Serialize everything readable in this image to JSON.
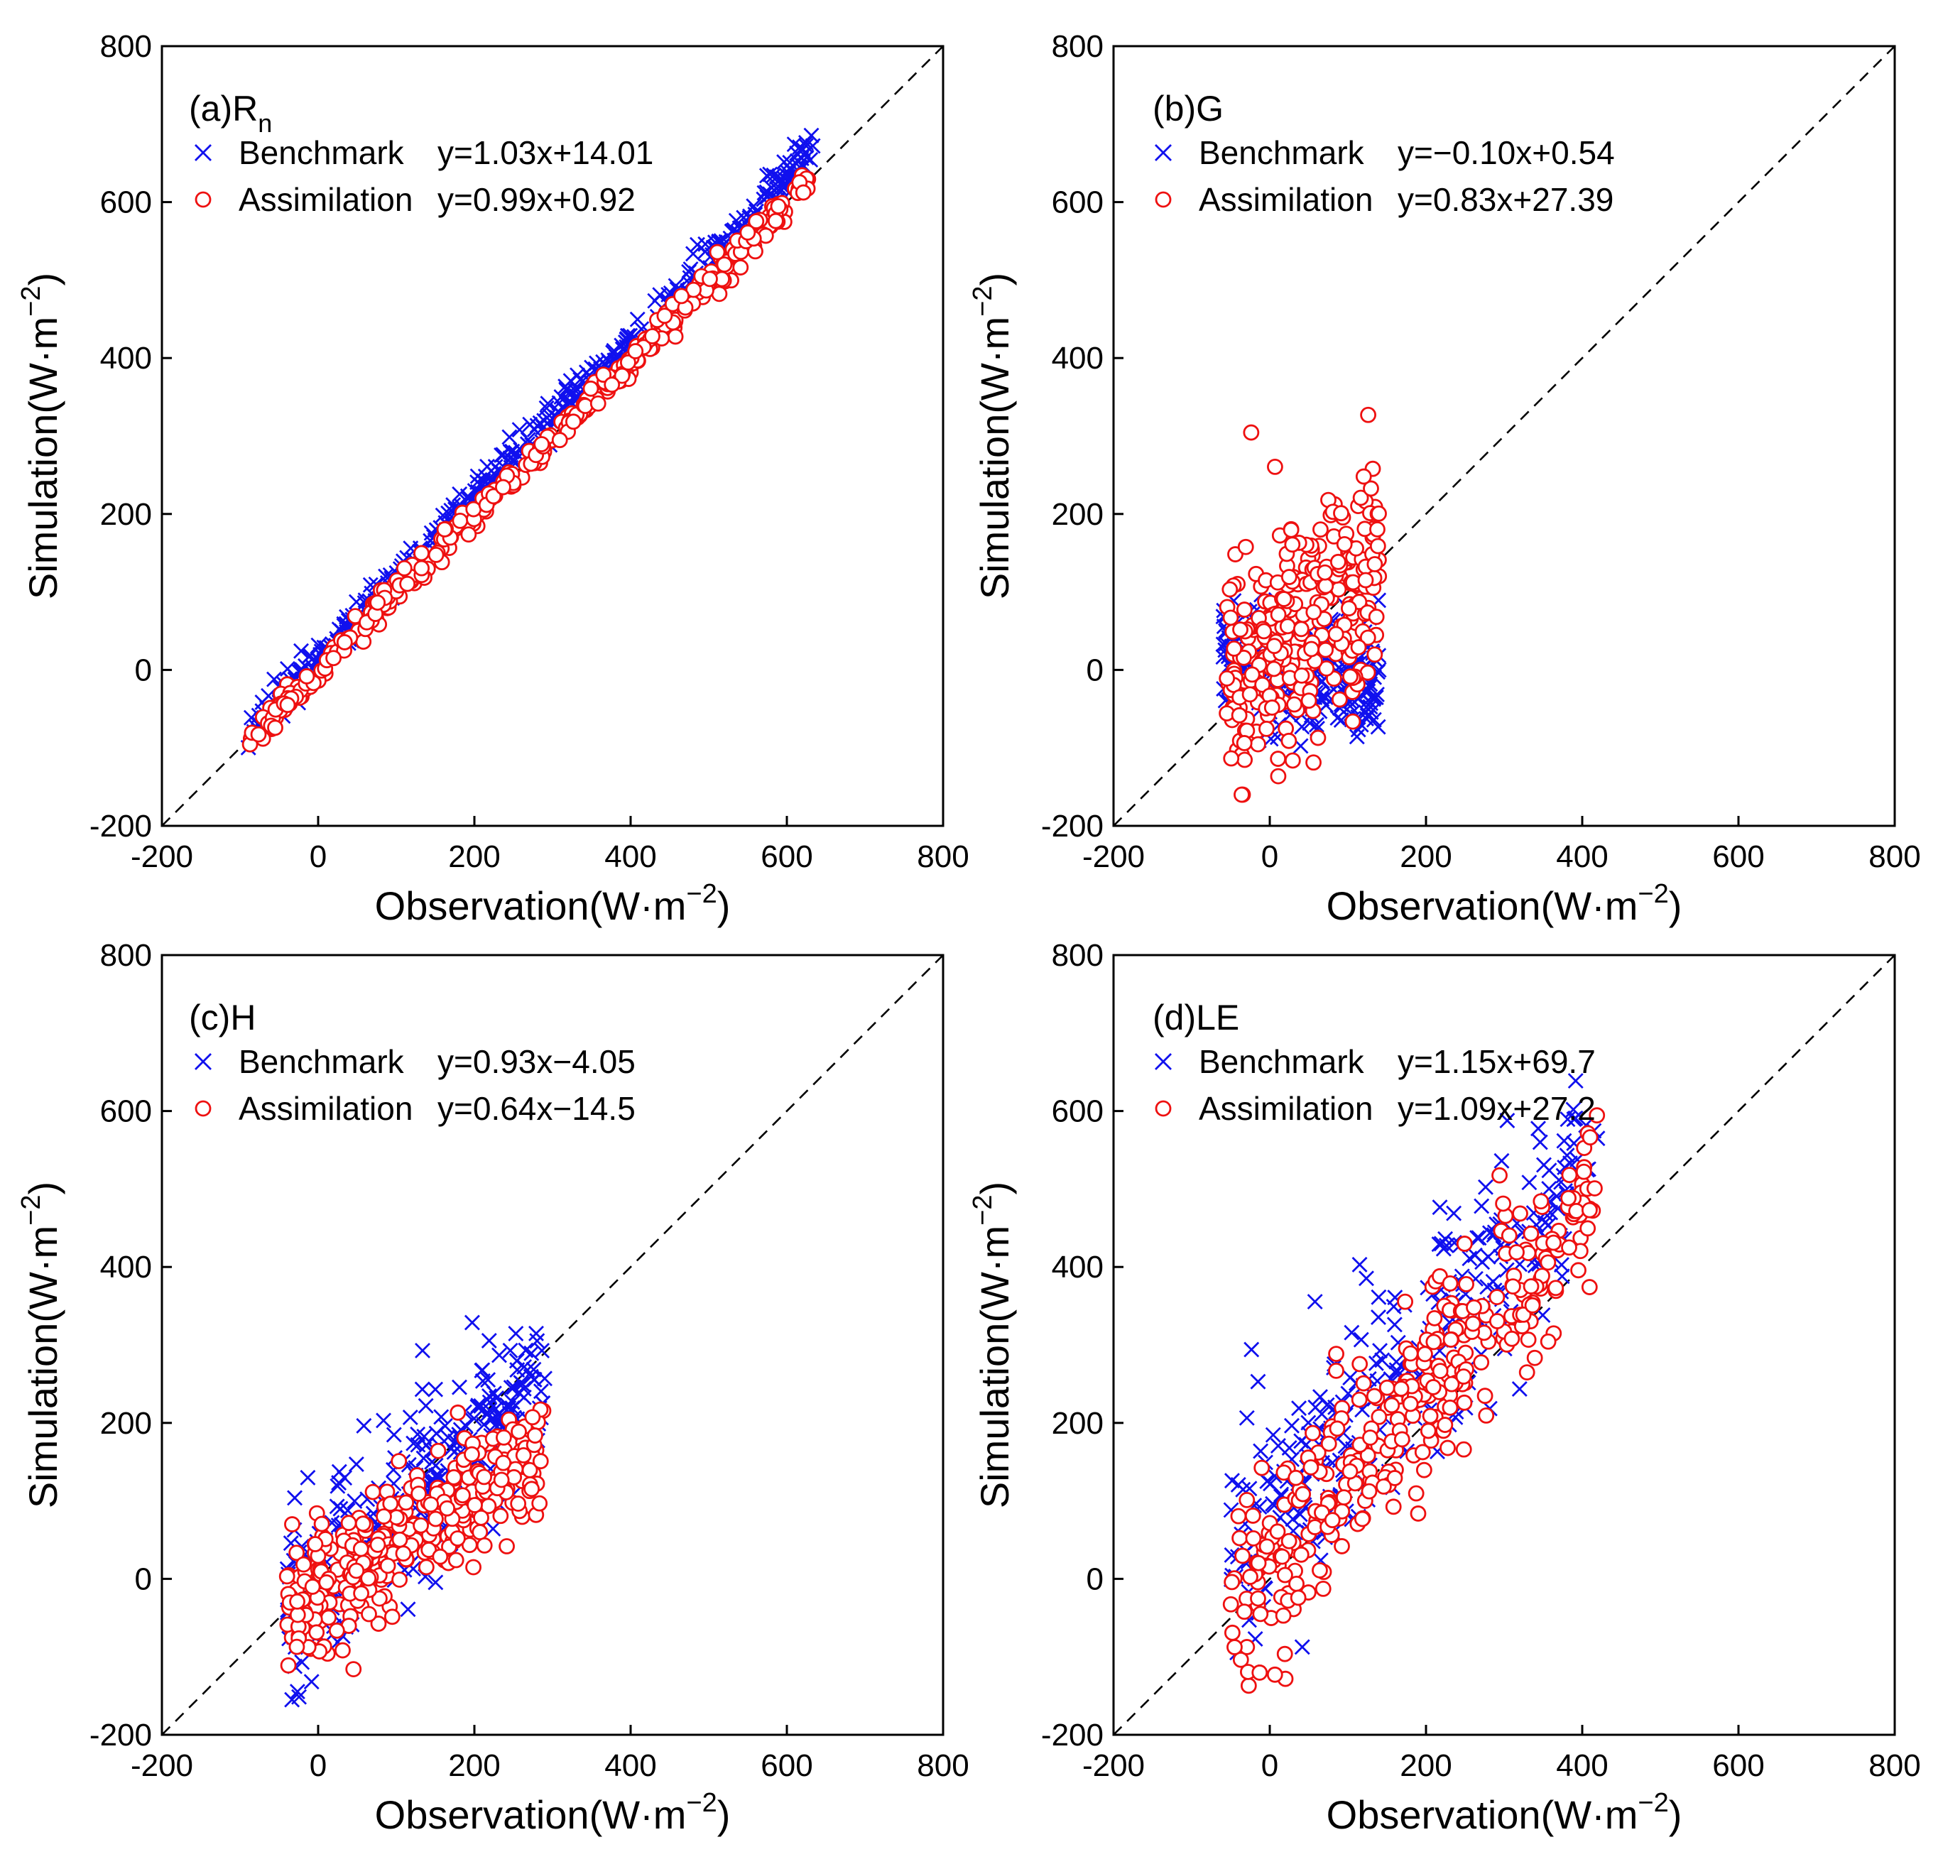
{
  "chart_data": [
    {
      "type": "scatter",
      "panel": "(a)",
      "variable": "R",
      "variable_sub": "n",
      "xlabel": "Observation(W·m",
      "ylabel": "Simulation(W·m",
      "unit_exponent": "−2",
      "xlim": [
        -200,
        800
      ],
      "ylim": [
        -200,
        800
      ],
      "xticks": [
        "-200",
        "0",
        "200",
        "400",
        "600",
        "800"
      ],
      "yticks": [
        "-200",
        "0",
        "200",
        "400",
        "600",
        "800"
      ],
      "series": [
        {
          "name": "Benchmark",
          "marker": "x",
          "color": "#1010ee",
          "equation": "y=1.03x+14.01",
          "slope": 1.03,
          "intercept": 14.01,
          "x_range": [
            -95,
            635
          ],
          "scatter_sd": 12,
          "count": 420
        },
        {
          "name": "Assimilation",
          "marker": "o",
          "color": "#ee1010",
          "equation": "y=0.99x+0.92",
          "slope": 0.99,
          "intercept": 0.92,
          "x_range": [
            -88,
            630
          ],
          "scatter_sd": 9,
          "count": 380
        }
      ]
    },
    {
      "type": "scatter",
      "panel": "(b)",
      "variable": "G",
      "variable_sub": "",
      "xlabel": "Observation(W·m",
      "ylabel": "Simulation(W·m",
      "unit_exponent": "−2",
      "xlim": [
        -200,
        800
      ],
      "ylim": [
        -200,
        800
      ],
      "xticks": [
        "-200",
        "0",
        "200",
        "400",
        "600",
        "800"
      ],
      "yticks": [
        "-200",
        "0",
        "200",
        "400",
        "600",
        "800"
      ],
      "series": [
        {
          "name": "Benchmark",
          "marker": "x",
          "color": "#1010ee",
          "equation": "y=−0.10x+0.54",
          "slope": -0.1,
          "intercept": 0.54,
          "x_range": [
            -60,
            140
          ],
          "scatter_sd": 35,
          "count": 300
        },
        {
          "name": "Assimilation",
          "marker": "o",
          "color": "#ee1010",
          "equation": "y=0.83x+27.39",
          "slope": 0.83,
          "intercept": 27.39,
          "x_range": [
            -55,
            140
          ],
          "scatter_sd": 70,
          "count": 320
        }
      ]
    },
    {
      "type": "scatter",
      "panel": "(c)",
      "variable": "H",
      "variable_sub": "",
      "xlabel": "Observation(W·m",
      "ylabel": "Simulation(W·m",
      "unit_exponent": "−2",
      "xlim": [
        -200,
        800
      ],
      "ylim": [
        -200,
        800
      ],
      "xticks": [
        "-200",
        "0",
        "200",
        "400",
        "600",
        "800"
      ],
      "yticks": [
        "-200",
        "0",
        "200",
        "400",
        "600",
        "800"
      ],
      "series": [
        {
          "name": "Benchmark",
          "marker": "x",
          "color": "#1010ee",
          "equation": "y=0.93x−4.05",
          "slope": 0.93,
          "intercept": -4.05,
          "x_range": [
            -40,
            290
          ],
          "scatter_sd": 55,
          "count": 320
        },
        {
          "name": "Assimilation",
          "marker": "o",
          "color": "#ee1010",
          "equation": "y=0.64x−14.5",
          "slope": 0.64,
          "intercept": -14.5,
          "x_range": [
            -40,
            290
          ],
          "scatter_sd": 40,
          "count": 330
        }
      ]
    },
    {
      "type": "scatter",
      "panel": "(d)",
      "variable": "LE",
      "variable_sub": "",
      "xlabel": "Observation(W·m",
      "ylabel": "Simulation(W·m",
      "unit_exponent": "−2",
      "xlim": [
        -200,
        800
      ],
      "ylim": [
        -200,
        800
      ],
      "xticks": [
        "-200",
        "0",
        "200",
        "400",
        "600",
        "800"
      ],
      "yticks": [
        "-200",
        "0",
        "200",
        "400",
        "600",
        "800"
      ],
      "series": [
        {
          "name": "Benchmark",
          "marker": "x",
          "color": "#1010ee",
          "equation": "y=1.15x+69.7",
          "slope": 1.15,
          "intercept": 69.7,
          "x_range": [
            -50,
            420
          ],
          "scatter_sd": 75,
          "count": 330
        },
        {
          "name": "Assimilation",
          "marker": "o",
          "color": "#ee1010",
          "equation": "y=1.09x+27.2",
          "slope": 1.09,
          "intercept": 27.2,
          "x_range": [
            -50,
            420
          ],
          "scatter_sd": 60,
          "count": 340
        }
      ]
    }
  ]
}
